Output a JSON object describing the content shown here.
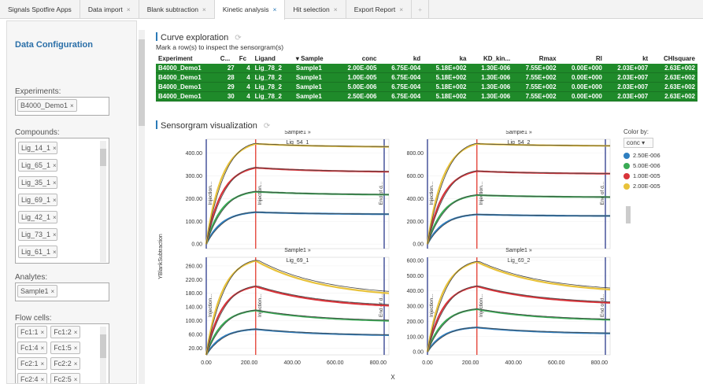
{
  "tabs": [
    {
      "label": "Signals Spotfire Apps",
      "close": false,
      "active": false
    },
    {
      "label": "Data import",
      "close": true,
      "active": false
    },
    {
      "label": "Blank subtraction",
      "close": true,
      "active": false
    },
    {
      "label": "Kinetic analysis",
      "close": true,
      "active": true
    },
    {
      "label": "Hit selection",
      "close": true,
      "active": false
    },
    {
      "label": "Export Report",
      "close": true,
      "active": false
    }
  ],
  "tab_close_glyph": "×",
  "tab_add_glyph": "+",
  "sidebar": {
    "title": "Data Configuration",
    "experiments": {
      "label": "Experiments:",
      "chips": [
        "B4000_Demo1"
      ]
    },
    "compounds": {
      "label": "Compounds:",
      "chips": [
        "Lig_14_1",
        "Lig_65_1",
        "Lig_35_1",
        "Lig_69_1",
        "Lig_42_1",
        "Lig_73_1",
        "Lig_61_1"
      ]
    },
    "analytes": {
      "label": "Analytes:",
      "chips": [
        "Sample1"
      ]
    },
    "flow_cells": {
      "label": "Flow cells:",
      "chips": [
        "Fc1:1",
        "Fc1:2",
        "Fc1:4",
        "Fc1:5",
        "Fc2:1",
        "Fc2:2",
        "Fc2:4",
        "Fc2:5"
      ]
    },
    "chip_close": "×"
  },
  "curve_exploration": {
    "title": "Curve exploration",
    "subtitle": "Mark a row(s) to inspect the sensorgram(s)",
    "columns": [
      "Experiment",
      "C...",
      "Fc",
      "Ligand",
      "▾ Sample",
      "conc",
      "kd",
      "ka",
      "KD_kin...",
      "Rmax",
      "RI",
      "kt",
      "CHIsquare"
    ],
    "rows": [
      [
        "B4000_Demo1",
        "27",
        "4",
        "Lig_78_2",
        "Sample1",
        "2.00E-005",
        "6.75E-004",
        "5.18E+002",
        "1.30E-006",
        "7.55E+002",
        "0.00E+000",
        "2.03E+007",
        "2.63E+002"
      ],
      [
        "B4000_Demo1",
        "28",
        "4",
        "Lig_78_2",
        "Sample1",
        "1.00E-005",
        "6.75E-004",
        "5.18E+002",
        "1.30E-006",
        "7.55E+002",
        "0.00E+000",
        "2.03E+007",
        "2.63E+002"
      ],
      [
        "B4000_Demo1",
        "29",
        "4",
        "Lig_78_2",
        "Sample1",
        "5.00E-006",
        "6.75E-004",
        "5.18E+002",
        "1.30E-006",
        "7.55E+002",
        "0.00E+000",
        "2.03E+007",
        "2.63E+002"
      ],
      [
        "B4000_Demo1",
        "30",
        "4",
        "Lig_78_2",
        "Sample1",
        "2.50E-006",
        "6.75E-004",
        "5.18E+002",
        "1.30E-006",
        "7.55E+002",
        "0.00E+000",
        "2.03E+007",
        "2.63E+002"
      ]
    ]
  },
  "sensorgram": {
    "title": "Sensorgram visualization",
    "ylabel": "YBlankSubtraction",
    "xlabel": "X",
    "color_by_label": "Color by:",
    "color_by_value": "conc",
    "legend": [
      {
        "label": "2.50E-006",
        "color": "#2f7fc0"
      },
      {
        "label": "5.00E-006",
        "color": "#3aaa55"
      },
      {
        "label": "1.00E-005",
        "color": "#d9343a"
      },
      {
        "label": "2.00E-005",
        "color": "#e8c23a"
      }
    ],
    "marker_labels": {
      "injection": "Injection...",
      "end": "End of d..."
    }
  },
  "chart_data": [
    {
      "type": "line",
      "title": "Sample1 » Lig_54_1",
      "xlim": [
        0,
        850
      ],
      "ylim": [
        -20,
        460
      ],
      "yticks": [
        "0.00",
        "100.00",
        "200.00",
        "300.00",
        "400.00"
      ],
      "x": [
        0,
        230,
        850
      ],
      "series": [
        {
          "name": "2.50E-006",
          "peak": 140,
          "end": 130
        },
        {
          "name": "5.00E-006",
          "peak": 230,
          "end": 215
        },
        {
          "name": "1.00E-005",
          "peak": 335,
          "end": 315
        },
        {
          "name": "2.00E-005",
          "peak": 440,
          "end": 425
        }
      ]
    },
    {
      "type": "line",
      "title": "Sample1 » Lig_54_2",
      "xlim": [
        0,
        850
      ],
      "ylim": [
        -40,
        920
      ],
      "yticks": [
        "0.00",
        "200.00",
        "400.00",
        "600.00",
        "800.00"
      ],
      "x": [
        0,
        230,
        850
      ],
      "series": [
        {
          "name": "2.50E-006",
          "peak": 260,
          "end": 245
        },
        {
          "name": "5.00E-006",
          "peak": 430,
          "end": 410
        },
        {
          "name": "1.00E-005",
          "peak": 640,
          "end": 615
        },
        {
          "name": "2.00E-005",
          "peak": 880,
          "end": 860
        }
      ]
    },
    {
      "type": "line",
      "title": "Sample1 » Lig_69_1",
      "xlim": [
        0,
        850
      ],
      "ylim": [
        0,
        285
      ],
      "yticks": [
        "20.00",
        "60.00",
        "100.00",
        "140.00",
        "180.00",
        "220.00",
        "260.00"
      ],
      "yticks_minor": [
        "40.00",
        "80.00",
        "120.00",
        "160.00",
        "200.00",
        "240.00"
      ],
      "x": [
        0,
        230,
        850
      ],
      "series": [
        {
          "name": "2.50E-006",
          "peak": 75,
          "end": 55
        },
        {
          "name": "5.00E-006",
          "peak": 130,
          "end": 95
        },
        {
          "name": "1.00E-005",
          "peak": 200,
          "end": 135
        },
        {
          "name": "2.00E-005",
          "peak": 275,
          "end": 165
        }
      ]
    },
    {
      "type": "line",
      "title": "Sample1 » Lig_69_2",
      "xlim": [
        0,
        850
      ],
      "ylim": [
        -20,
        620
      ],
      "yticks": [
        "0.00",
        "100.00",
        "200.00",
        "300.00",
        "400.00",
        "500.00",
        "600.00"
      ],
      "x": [
        0,
        230,
        850
      ],
      "series": [
        {
          "name": "2.50E-006",
          "peak": 160,
          "end": 115
        },
        {
          "name": "5.00E-006",
          "peak": 280,
          "end": 200
        },
        {
          "name": "1.00E-005",
          "peak": 430,
          "end": 305
        },
        {
          "name": "2.00E-005",
          "peak": 590,
          "end": 380
        }
      ]
    }
  ],
  "x_ticks": [
    "0.00",
    "200.00",
    "400.00",
    "600.00",
    "800.00"
  ]
}
